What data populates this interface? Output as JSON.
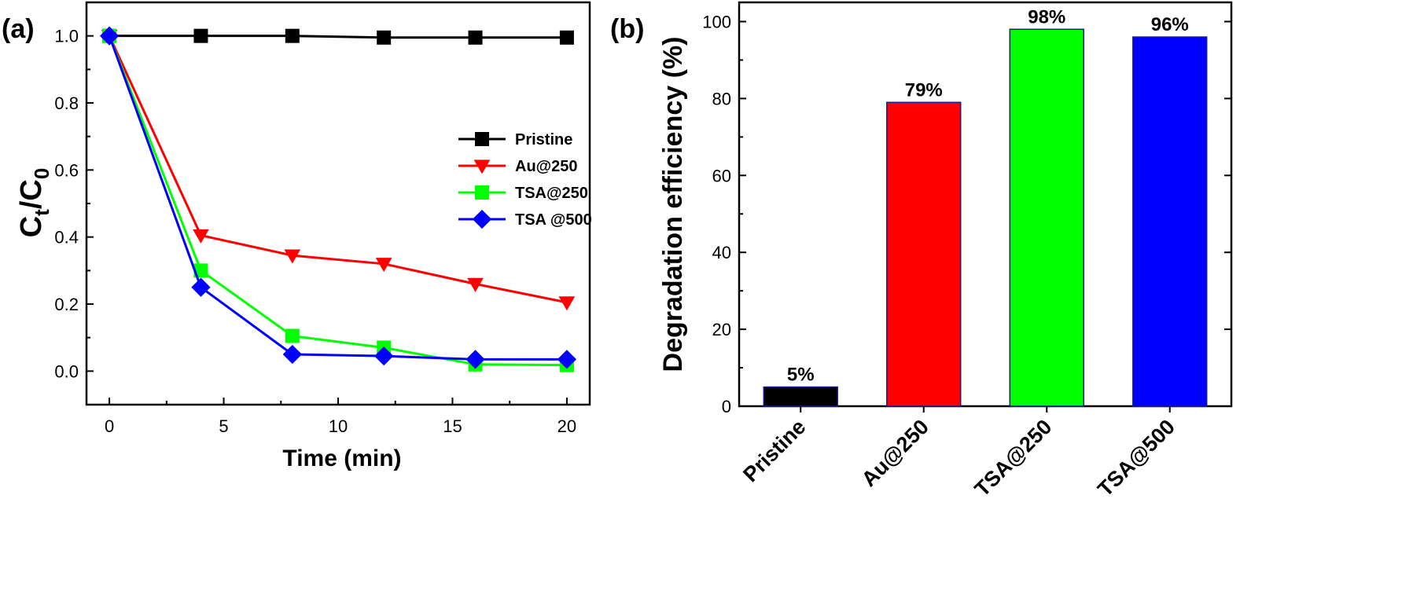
{
  "chart_data": [
    {
      "type": "line",
      "panel_label": "(a)",
      "xlabel": "Time (min)",
      "ylabel_main": "C",
      "ylabel_sub1": "t",
      "ylabel_slash": "/C",
      "ylabel_sub2": "0",
      "xlim": [
        -1,
        21
      ],
      "ylim": [
        -0.1,
        1.1
      ],
      "xticks": [
        0,
        5,
        10,
        15,
        20
      ],
      "yticks": [
        0.0,
        0.2,
        0.4,
        0.6,
        0.8,
        1.0
      ],
      "ytick_labels": [
        "0.0",
        "0.2",
        "0.4",
        "0.6",
        "0.8",
        "1.0"
      ],
      "legend_position": "right",
      "x": [
        0,
        4,
        8,
        12,
        16,
        20
      ],
      "series": [
        {
          "name": "Pristine",
          "color": "#000000",
          "marker": "square",
          "values": [
            1.0,
            1.0,
            1.0,
            0.995,
            0.995,
            0.995
          ]
        },
        {
          "name": "Au@250",
          "color": "#ff0000",
          "marker": "triangle-down",
          "values": [
            1.0,
            0.405,
            0.345,
            0.32,
            0.26,
            0.205
          ]
        },
        {
          "name": "TSA@250",
          "color": "#00ff00",
          "marker": "square",
          "values": [
            1.0,
            0.3,
            0.105,
            0.07,
            0.02,
            0.018
          ]
        },
        {
          "name": "TSA @500",
          "color": "#0000ff",
          "marker": "diamond",
          "values": [
            1.0,
            0.25,
            0.05,
            0.045,
            0.035,
            0.035
          ]
        }
      ]
    },
    {
      "type": "bar",
      "panel_label": "(b)",
      "ylabel": "Degradation efficiency (%)",
      "ylim": [
        0,
        105
      ],
      "yticks": [
        0,
        20,
        40,
        60,
        80,
        100
      ],
      "categories": [
        "Pristine",
        "Au@250",
        "TSA@250",
        "TSA@500"
      ],
      "values": [
        5,
        79,
        98,
        96
      ],
      "value_labels": [
        "5%",
        "79%",
        "98%",
        "96%"
      ],
      "colors": [
        "#000000",
        "#ff0000",
        "#00ff00",
        "#0000ff"
      ]
    }
  ]
}
